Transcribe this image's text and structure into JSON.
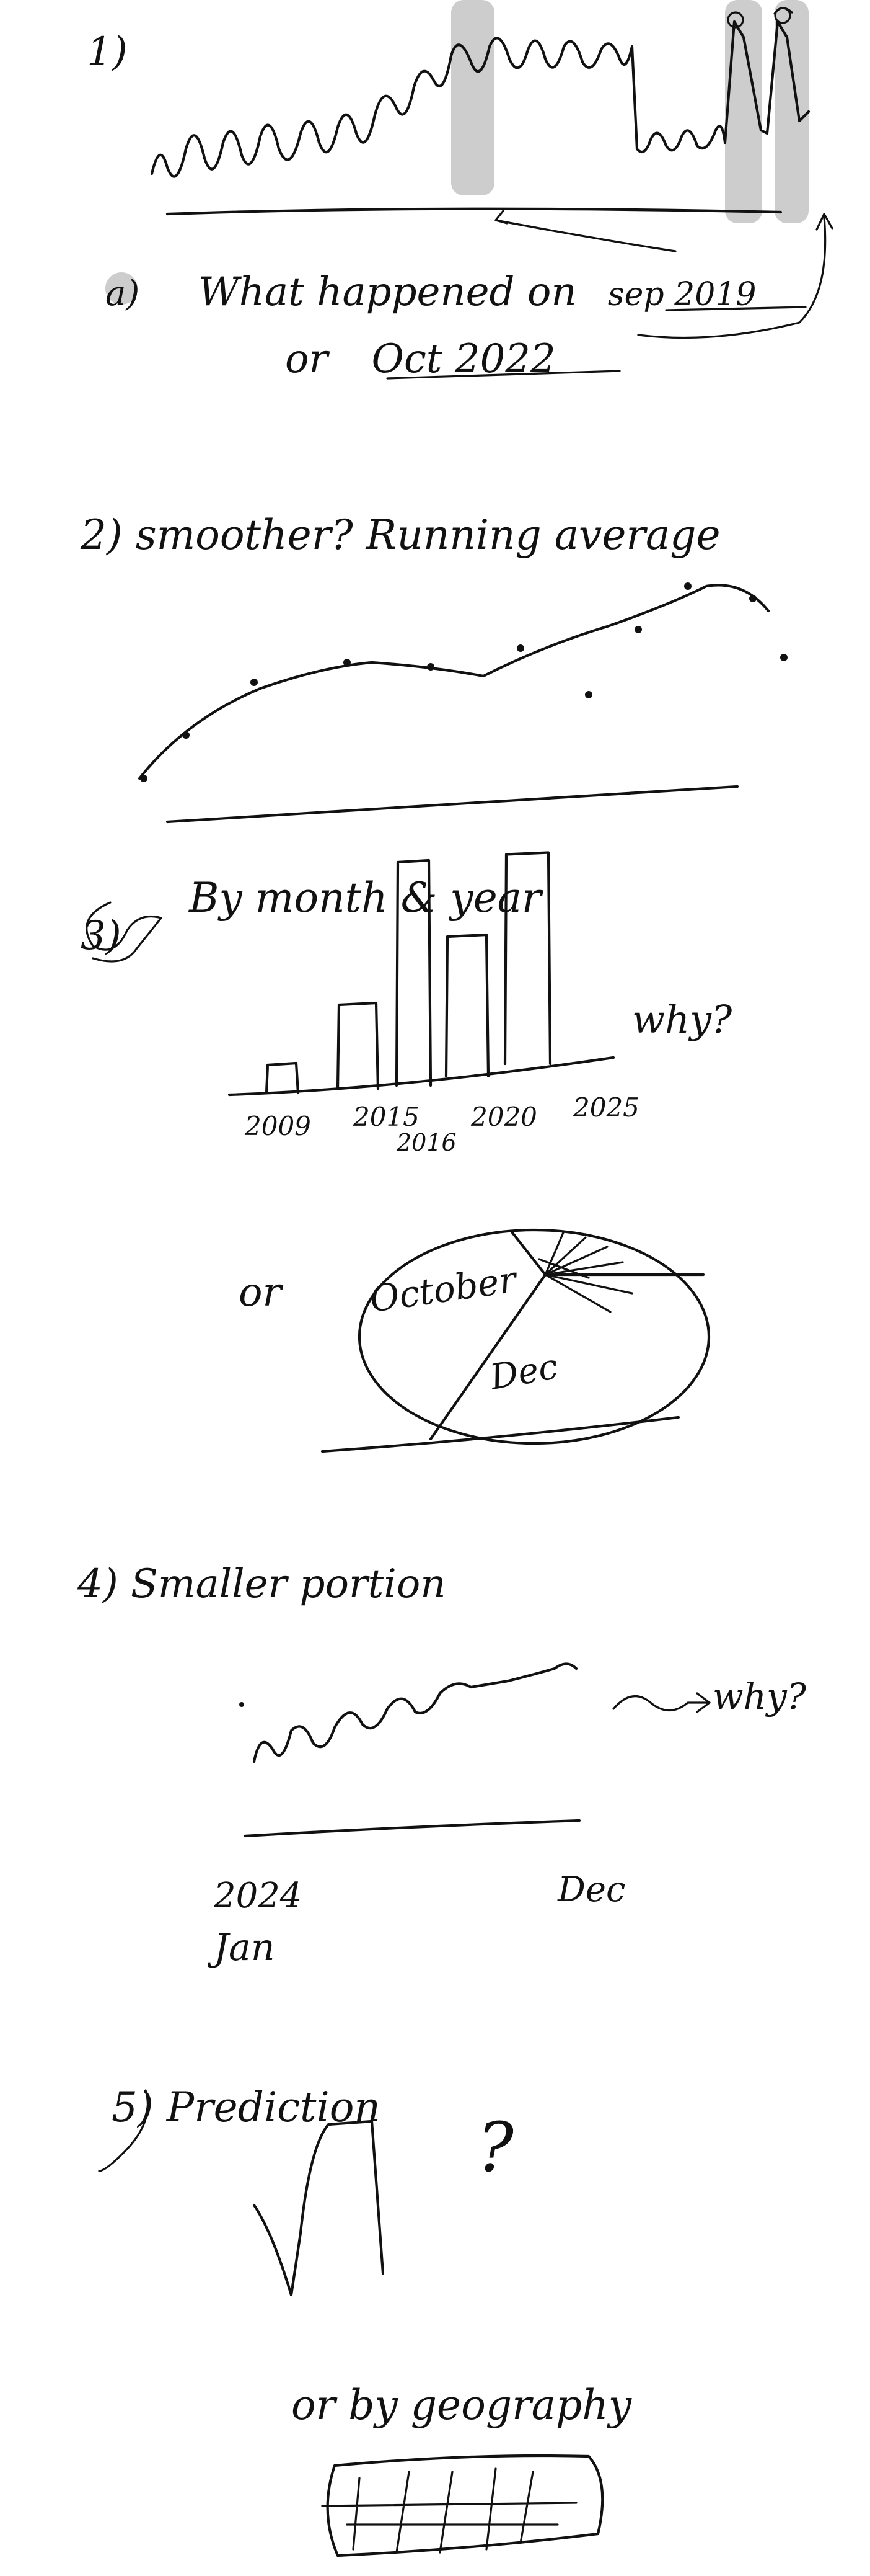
{
  "section1": {
    "number": "1)",
    "subnumber": "a)",
    "question_line1_prefix": "What happened on",
    "question_line1_date": "sep 2019",
    "question_line2_prefix": "or",
    "question_line2_date": "Oct 2022"
  },
  "section2": {
    "heading": "2) smoother? Running average"
  },
  "section3": {
    "number": "3)",
    "heading": "By month & year",
    "side_question": "why?",
    "bar_chart": {
      "type": "bar",
      "categories": [
        "2009",
        "2015",
        "2016",
        "2020",
        "2025"
      ],
      "category_labels": [
        "2009",
        "2015",
        "2016",
        "2020",
        "2025"
      ],
      "values": [
        1,
        3,
        8,
        5,
        7.5
      ]
    },
    "or_label": "or",
    "pie_chart": {
      "type": "pie",
      "labels": [
        "October",
        "Dec"
      ]
    }
  },
  "section4": {
    "heading": "4) Smaller portion",
    "side_question": "why?",
    "start_label": "2024",
    "start_sublabel": "Jan",
    "end_label": "Dec"
  },
  "section5": {
    "heading": "5) Prediction",
    "question_mark": "?",
    "geography_label": "or by geography"
  }
}
